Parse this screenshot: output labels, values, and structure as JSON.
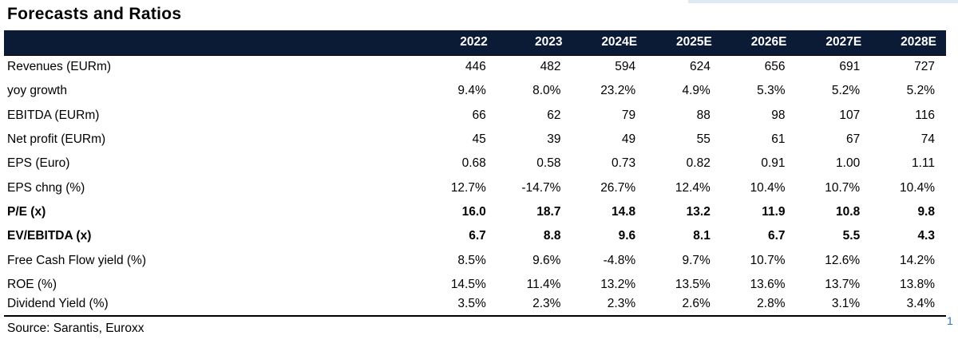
{
  "title": "Forecasts and Ratios",
  "columns": [
    "2022",
    "2023",
    "2024E",
    "2025E",
    "2026E",
    "2027E",
    "2028E"
  ],
  "rows": [
    {
      "label": "Revenues (EURm)",
      "bold": false,
      "values": [
        "446",
        "482",
        "594",
        "624",
        "656",
        "691",
        "727"
      ]
    },
    {
      "label": "yoy growth",
      "bold": false,
      "values": [
        "9.4%",
        "8.0%",
        "23.2%",
        "4.9%",
        "5.3%",
        "5.2%",
        "5.2%"
      ]
    },
    {
      "label": "EBITDA (EURm)",
      "bold": false,
      "values": [
        "66",
        "62",
        "79",
        "88",
        "98",
        "107",
        "116"
      ]
    },
    {
      "label": "Net profit (EURm)",
      "bold": false,
      "values": [
        "45",
        "39",
        "49",
        "55",
        "61",
        "67",
        "74"
      ]
    },
    {
      "label": "EPS (Euro)",
      "bold": false,
      "values": [
        "0.68",
        "0.58",
        "0.73",
        "0.82",
        "0.91",
        "1.00",
        "1.11"
      ]
    },
    {
      "label": "EPS chng (%)",
      "bold": false,
      "values": [
        "12.7%",
        "-14.7%",
        "26.7%",
        "12.4%",
        "10.4%",
        "10.7%",
        "10.4%"
      ]
    },
    {
      "label": "P/E (x)",
      "bold": true,
      "values": [
        "16.0",
        "18.7",
        "14.8",
        "13.2",
        "11.9",
        "10.8",
        "9.8"
      ]
    },
    {
      "label": "EV/EBITDA (x)",
      "bold": true,
      "values": [
        "6.7",
        "8.8",
        "9.6",
        "8.1",
        "6.7",
        "5.5",
        "4.3"
      ]
    },
    {
      "label": "Free Cash Flow yield (%)",
      "bold": false,
      "values": [
        "8.5%",
        "9.6%",
        "-4.8%",
        "9.7%",
        "10.7%",
        "12.6%",
        "14.2%"
      ]
    },
    {
      "label": "ROE (%)",
      "bold": false,
      "values": [
        "14.5%",
        "11.4%",
        "13.2%",
        "13.5%",
        "13.6%",
        "13.7%",
        "13.8%"
      ]
    },
    {
      "label": "Dividend Yield (%)",
      "bold": false,
      "values": [
        "3.5%",
        "2.3%",
        "2.3%",
        "2.6%",
        "2.8%",
        "3.1%",
        "3.4%"
      ]
    }
  ],
  "source": "Source: Sarantis, Euroxx",
  "page_mark": "1",
  "colors": {
    "header_background": "#0b1b36",
    "header_text": "#ffffff",
    "page_mark": "#2e75b6"
  }
}
